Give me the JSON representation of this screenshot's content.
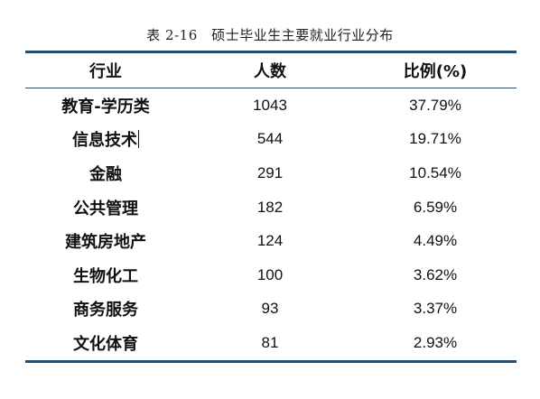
{
  "caption": "表 2-16　硕士毕业生主要就业行业分布",
  "table": {
    "headers": [
      "行业",
      "人数",
      "比例(%)"
    ],
    "rows": [
      {
        "industry": "教育-学历类",
        "count": "1043",
        "ratio": "37.79%"
      },
      {
        "industry": "信息技术",
        "count": "544",
        "ratio": "19.71%"
      },
      {
        "industry": "金融",
        "count": "291",
        "ratio": "10.54%"
      },
      {
        "industry": "公共管理",
        "count": "182",
        "ratio": "6.59%"
      },
      {
        "industry": "建筑房地产",
        "count": "124",
        "ratio": "4.49%"
      },
      {
        "industry": "生物化工",
        "count": "100",
        "ratio": "3.62%"
      },
      {
        "industry": "商务服务",
        "count": "93",
        "ratio": "3.37%"
      },
      {
        "industry": "文化体育",
        "count": "81",
        "ratio": "2.93%"
      }
    ]
  },
  "colors": {
    "rule": "#1f4e79"
  }
}
